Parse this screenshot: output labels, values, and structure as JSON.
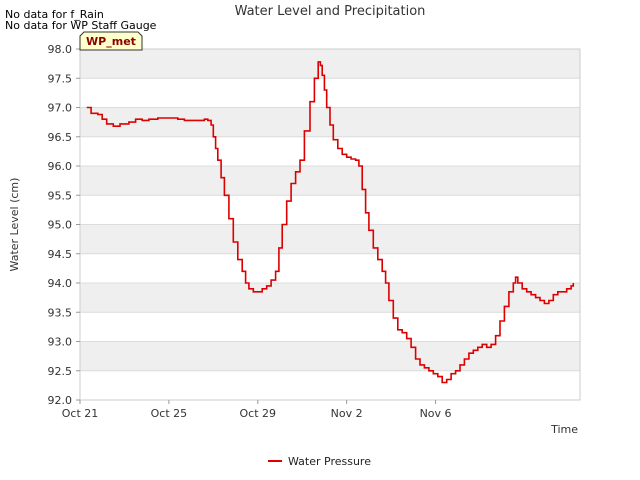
{
  "chart_data": {
    "type": "line",
    "title": "Water Level and Precipitation",
    "xlabel": "Time",
    "ylabel": "Water Level (cm)",
    "ylim": [
      92.0,
      98.0
    ],
    "y_ticks": [
      "92.0",
      "92.5",
      "93.0",
      "93.5",
      "94.0",
      "94.5",
      "95.0",
      "95.5",
      "96.0",
      "96.5",
      "97.0",
      "97.5",
      "98.0"
    ],
    "x_ticks": [
      "Oct 21",
      "Oct 25",
      "Oct 29",
      "Nov 2",
      "Nov 6"
    ],
    "x_range_days": [
      0,
      18
    ],
    "grid": true,
    "legend_position": "bottom-center",
    "notes": [
      "No data for f_Rain",
      "No data for WP Staff Gauge"
    ],
    "badge": "WP_met",
    "series": [
      {
        "name": "Water Pressure",
        "color": "#dd0000",
        "points": [
          [
            0.3,
            97.0
          ],
          [
            0.5,
            96.9
          ],
          [
            0.8,
            96.88
          ],
          [
            1.0,
            96.8
          ],
          [
            1.2,
            96.72
          ],
          [
            1.5,
            96.68
          ],
          [
            1.8,
            96.72
          ],
          [
            2.2,
            96.75
          ],
          [
            2.5,
            96.8
          ],
          [
            2.8,
            96.78
          ],
          [
            3.1,
            96.8
          ],
          [
            3.5,
            96.82
          ],
          [
            4.0,
            96.82
          ],
          [
            4.4,
            96.8
          ],
          [
            4.7,
            96.78
          ],
          [
            5.0,
            96.78
          ],
          [
            5.3,
            96.78
          ],
          [
            5.6,
            96.8
          ],
          [
            5.75,
            96.78
          ],
          [
            5.9,
            96.7
          ],
          [
            6.0,
            96.5
          ],
          [
            6.1,
            96.3
          ],
          [
            6.2,
            96.1
          ],
          [
            6.35,
            95.8
          ],
          [
            6.5,
            95.5
          ],
          [
            6.7,
            95.1
          ],
          [
            6.9,
            94.7
          ],
          [
            7.1,
            94.4
          ],
          [
            7.3,
            94.2
          ],
          [
            7.45,
            94.0
          ],
          [
            7.6,
            93.9
          ],
          [
            7.8,
            93.85
          ],
          [
            8.0,
            93.85
          ],
          [
            8.2,
            93.9
          ],
          [
            8.4,
            93.95
          ],
          [
            8.6,
            94.05
          ],
          [
            8.8,
            94.2
          ],
          [
            8.95,
            94.6
          ],
          [
            9.1,
            95.0
          ],
          [
            9.3,
            95.4
          ],
          [
            9.5,
            95.7
          ],
          [
            9.7,
            95.9
          ],
          [
            9.9,
            96.1
          ],
          [
            10.1,
            96.6
          ],
          [
            10.35,
            97.1
          ],
          [
            10.55,
            97.5
          ],
          [
            10.72,
            97.78
          ],
          [
            10.82,
            97.72
          ],
          [
            10.9,
            97.55
          ],
          [
            11.0,
            97.3
          ],
          [
            11.1,
            97.0
          ],
          [
            11.25,
            96.7
          ],
          [
            11.4,
            96.45
          ],
          [
            11.6,
            96.3
          ],
          [
            11.8,
            96.2
          ],
          [
            12.0,
            96.15
          ],
          [
            12.2,
            96.12
          ],
          [
            12.4,
            96.1
          ],
          [
            12.55,
            96.0
          ],
          [
            12.7,
            95.6
          ],
          [
            12.85,
            95.2
          ],
          [
            13.0,
            94.9
          ],
          [
            13.2,
            94.6
          ],
          [
            13.4,
            94.4
          ],
          [
            13.6,
            94.2
          ],
          [
            13.75,
            94.0
          ],
          [
            13.9,
            93.7
          ],
          [
            14.1,
            93.4
          ],
          [
            14.3,
            93.2
          ],
          [
            14.5,
            93.15
          ],
          [
            14.7,
            93.05
          ],
          [
            14.9,
            92.9
          ],
          [
            15.1,
            92.7
          ],
          [
            15.3,
            92.6
          ],
          [
            15.5,
            92.55
          ],
          [
            15.7,
            92.5
          ],
          [
            15.9,
            92.45
          ],
          [
            16.1,
            92.4
          ],
          [
            16.3,
            92.3
          ],
          [
            16.5,
            92.35
          ],
          [
            16.7,
            92.45
          ],
          [
            16.9,
            92.5
          ],
          [
            17.1,
            92.6
          ],
          [
            17.3,
            92.7
          ],
          [
            17.5,
            92.8
          ],
          [
            17.7,
            92.85
          ],
          [
            17.9,
            92.9
          ],
          [
            18.1,
            92.95
          ],
          [
            18.3,
            92.9
          ],
          [
            18.5,
            92.95
          ],
          [
            18.7,
            93.1
          ],
          [
            18.9,
            93.35
          ],
          [
            19.1,
            93.6
          ],
          [
            19.3,
            93.85
          ],
          [
            19.5,
            94.0
          ],
          [
            19.6,
            94.1
          ],
          [
            19.7,
            94.0
          ],
          [
            19.9,
            93.9
          ],
          [
            20.1,
            93.85
          ],
          [
            20.3,
            93.8
          ],
          [
            20.5,
            93.75
          ],
          [
            20.7,
            93.7
          ],
          [
            20.9,
            93.65
          ],
          [
            21.1,
            93.7
          ],
          [
            21.3,
            93.8
          ],
          [
            21.5,
            93.85
          ],
          [
            21.7,
            93.85
          ],
          [
            21.9,
            93.9
          ],
          [
            22.1,
            93.95
          ],
          [
            22.2,
            94.0
          ]
        ]
      }
    ]
  }
}
